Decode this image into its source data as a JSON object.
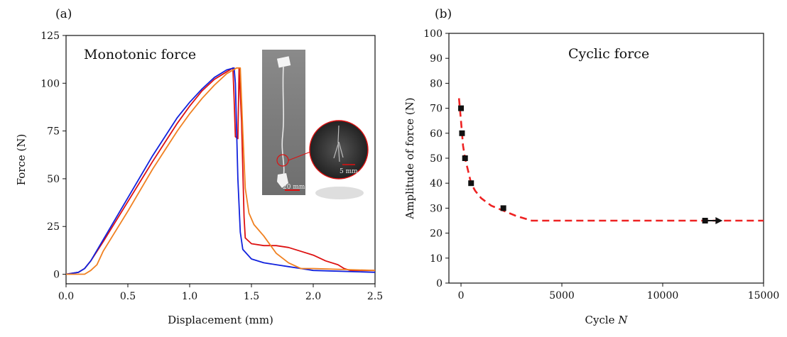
{
  "chart_data": [
    {
      "panel_label": "(a)",
      "type": "line",
      "title": "Monotonic force",
      "xlabel": "Displacement (mm)",
      "ylabel": "Force (N)",
      "xlim": [
        0,
        2.5
      ],
      "ylim": [
        -5,
        125
      ],
      "xticks": [
        "0.0",
        "0.5",
        "1.0",
        "1.5",
        "2.0",
        "2.5"
      ],
      "yticks": [
        "0",
        "25",
        "50",
        "75",
        "100",
        "125"
      ],
      "series": [
        {
          "color": "#dd1111",
          "points": [
            [
              0,
              0
            ],
            [
              0.1,
              1
            ],
            [
              0.15,
              3
            ],
            [
              0.2,
              7
            ],
            [
              0.3,
              17
            ],
            [
              0.5,
              38
            ],
            [
              0.7,
              59
            ],
            [
              0.9,
              79
            ],
            [
              1.0,
              88
            ],
            [
              1.1,
              96
            ],
            [
              1.2,
              102
            ],
            [
              1.3,
              106
            ],
            [
              1.35,
              108
            ],
            [
              1.36,
              92
            ],
            [
              1.37,
              72
            ],
            [
              1.39,
              71
            ],
            [
              1.4,
              108
            ],
            [
              1.42,
              80
            ],
            [
              1.44,
              30
            ],
            [
              1.45,
              19
            ],
            [
              1.5,
              16
            ],
            [
              1.6,
              15
            ],
            [
              1.7,
              15
            ],
            [
              1.8,
              14
            ],
            [
              1.9,
              12
            ],
            [
              2.0,
              10
            ],
            [
              2.1,
              7
            ],
            [
              2.2,
              5
            ],
            [
              2.25,
              3
            ],
            [
              2.3,
              2
            ],
            [
              2.5,
              2
            ]
          ]
        },
        {
          "color": "#1122dd",
          "points": [
            [
              0,
              0
            ],
            [
              0.1,
              1
            ],
            [
              0.15,
              3
            ],
            [
              0.2,
              7
            ],
            [
              0.3,
              18
            ],
            [
              0.5,
              40
            ],
            [
              0.7,
              62
            ],
            [
              0.9,
              82
            ],
            [
              1.0,
              90
            ],
            [
              1.1,
              97
            ],
            [
              1.2,
              103
            ],
            [
              1.3,
              107
            ],
            [
              1.36,
              108
            ],
            [
              1.37,
              100
            ],
            [
              1.39,
              50
            ],
            [
              1.41,
              22
            ],
            [
              1.43,
              13
            ],
            [
              1.5,
              8
            ],
            [
              1.6,
              6
            ],
            [
              1.7,
              5
            ],
            [
              1.8,
              4
            ],
            [
              1.9,
              3
            ],
            [
              2.0,
              2
            ],
            [
              2.5,
              1
            ]
          ]
        },
        {
          "color": "#f08020",
          "points": [
            [
              0,
              0
            ],
            [
              0.15,
              0
            ],
            [
              0.2,
              2
            ],
            [
              0.25,
              5
            ],
            [
              0.3,
              12
            ],
            [
              0.5,
              33
            ],
            [
              0.7,
              55
            ],
            [
              0.9,
              75
            ],
            [
              1.0,
              84
            ],
            [
              1.1,
              92
            ],
            [
              1.2,
              99
            ],
            [
              1.3,
              105
            ],
            [
              1.38,
              108
            ],
            [
              1.41,
              108
            ],
            [
              1.43,
              75
            ],
            [
              1.45,
              45
            ],
            [
              1.48,
              32
            ],
            [
              1.52,
              26
            ],
            [
              1.6,
              20
            ],
            [
              1.7,
              11
            ],
            [
              1.8,
              6
            ],
            [
              1.9,
              3
            ],
            [
              2.0,
              3
            ],
            [
              2.5,
              2
            ]
          ]
        }
      ],
      "inset": {
        "scale_bar_1": "20 mm",
        "scale_bar_2": "5 mm"
      }
    },
    {
      "panel_label": "(b)",
      "type": "scatter",
      "title": "Cyclic force",
      "xlabel_prefix": "Cycle ",
      "xlabel_var": "N",
      "ylabel": "Amplitude of force (N)",
      "xlim": [
        -600,
        15000
      ],
      "ylim": [
        0,
        100
      ],
      "xticks": [
        "0",
        "5000",
        "10000",
        "15000"
      ],
      "yticks": [
        "0",
        "10",
        "20",
        "30",
        "40",
        "50",
        "60",
        "70",
        "80",
        "90",
        "100"
      ],
      "points": [
        [
          0,
          70
        ],
        [
          50,
          60
        ],
        [
          200,
          50
        ],
        [
          500,
          40
        ],
        [
          2100,
          30
        ],
        [
          12100,
          25
        ]
      ],
      "runout_arrow": {
        "from": [
          12100,
          25
        ],
        "to": [
          12900,
          25
        ]
      },
      "fit_curve": {
        "color": "#ee2222",
        "points": [
          [
            -100,
            74
          ],
          [
            0,
            65
          ],
          [
            100,
            55
          ],
          [
            200,
            50
          ],
          [
            350,
            45
          ],
          [
            500,
            40
          ],
          [
            700,
            37
          ],
          [
            1000,
            34
          ],
          [
            1500,
            31
          ],
          [
            2100,
            29
          ],
          [
            2700,
            27
          ],
          [
            3500,
            25
          ],
          [
            4500,
            25
          ],
          [
            15000,
            25
          ]
        ]
      }
    }
  ]
}
